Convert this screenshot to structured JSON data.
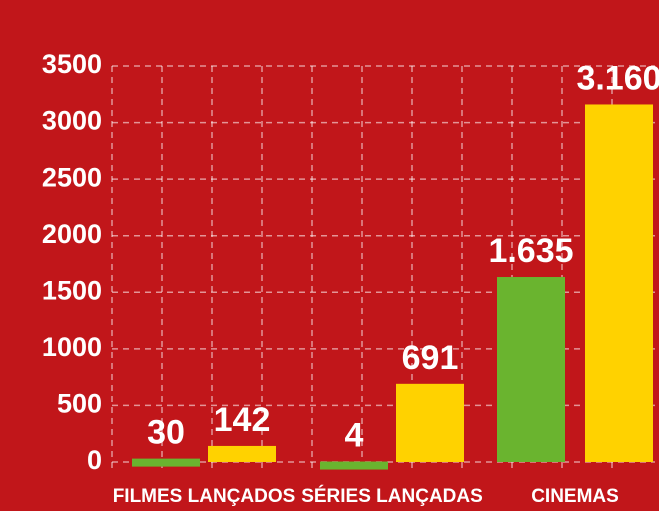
{
  "chart_data": {
    "type": "bar",
    "categories": [
      "FILMES LANÇADOS",
      "SÉRIES LANÇADAS",
      "CINEMAS"
    ],
    "series": [
      {
        "color": "#6ab42f",
        "values": [
          30,
          4,
          1635
        ],
        "value_labels": [
          "30",
          "4",
          "1.635"
        ]
      },
      {
        "color": "#ffd200",
        "values": [
          142,
          691,
          3160
        ],
        "value_labels": [
          "142",
          "691",
          "3.160"
        ]
      }
    ],
    "ylim": [
      0,
      3500
    ],
    "yticks": [
      0,
      500,
      1000,
      1500,
      2000,
      2500,
      3000,
      3500
    ],
    "grid": true
  }
}
